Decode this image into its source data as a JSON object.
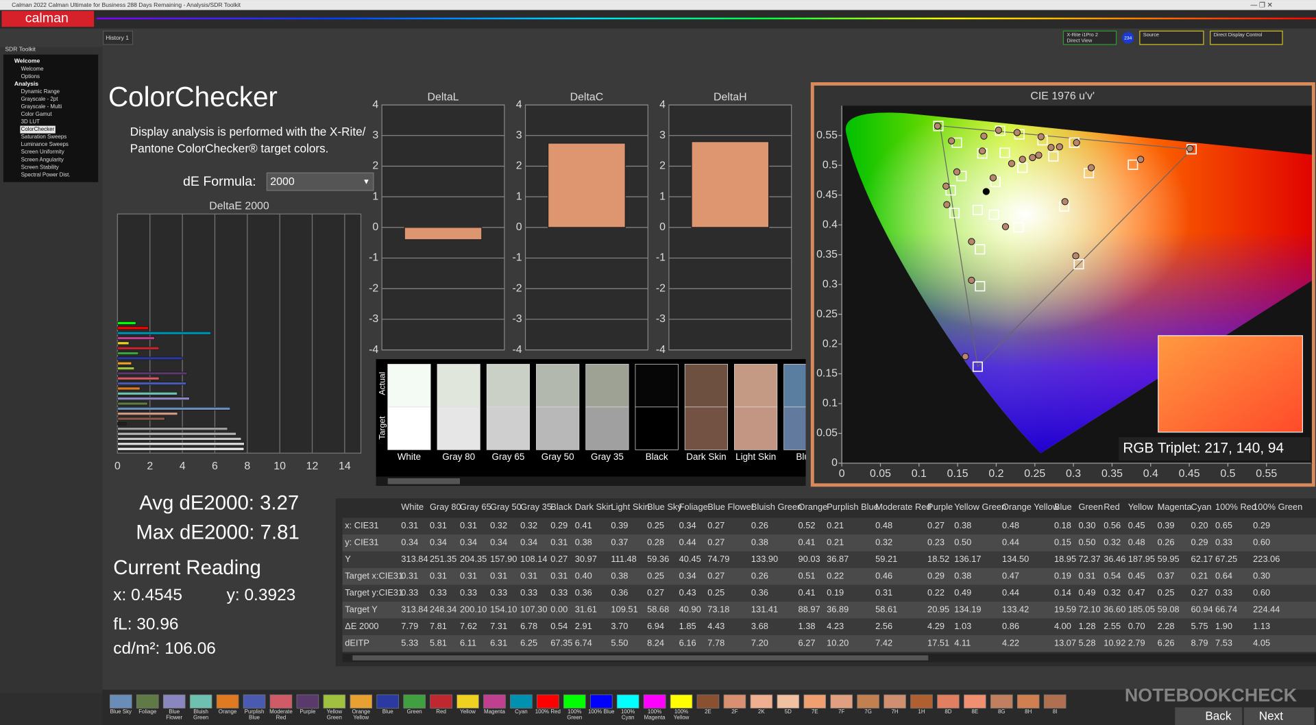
{
  "window": {
    "title": "Calman 2022 Calman Ultimate for Business 288 Days Remaining - Analysis/SDR Toolkit",
    "logo": "calman",
    "tab": "History 1",
    "meter_lines": [
      "X-Rite i1Pro 2",
      "Direct View"
    ],
    "meter_badge": "234",
    "source": "Source",
    "display_control": "Direct Display Control"
  },
  "sidebar": {
    "title": "SDR Toolkit",
    "selected": "ColorChecker",
    "groups": [
      {
        "label": "Welcome",
        "items": [
          "Welcome",
          "Options"
        ]
      },
      {
        "label": "Analysis",
        "items": [
          "Dynamic Range",
          "Grayscale - 2pt",
          "Grayscale - Multi",
          "Color Gamut",
          "3D LUT",
          "ColorChecker",
          "Saturation Sweeps",
          "Luminance Sweeps",
          "Screen Uniformity",
          "Screen Angularity",
          "Screen Stability",
          "Spectral Power Dist."
        ]
      }
    ]
  },
  "page": {
    "heading": "ColorChecker",
    "description_lines": [
      "Display analysis is performed with the X-Rite/",
      "Pantone ColorChecker® target colors."
    ],
    "de_formula_label": "dE Formula:",
    "de_formula_value": "2000"
  },
  "summary": {
    "avg": "Avg dE2000: 3.27",
    "max": "Max dE2000: 7.81",
    "current_title": "Current Reading",
    "x": "x: 0.4545",
    "y": "y: 0.3923",
    "fl": "fL: 30.96",
    "cdm2": "cd/m²: 106.06"
  },
  "chart_data": [
    {
      "type": "hbar",
      "title": "DeltaE 2000",
      "values": [
        7.79,
        7.81,
        7.62,
        7.31,
        6.78,
        0.54,
        2.91,
        3.7,
        6.94,
        1.85,
        4.43,
        3.68,
        1.38,
        4.23,
        2.56,
        4.29,
        1.03,
        0.86,
        4.0,
        1.28,
        2.55,
        0.7,
        2.28,
        5.75,
        1.9,
        1.13
      ],
      "colors": [
        "#f0f0f0",
        "#dcdcdc",
        "#c8c8c8",
        "#b4b4b4",
        "#a0a0a0",
        "#202020",
        "#8a5a44",
        "#d09a82",
        "#6a8cb8",
        "#5f7a45",
        "#8a86c0",
        "#6ec0b0",
        "#e07a20",
        "#4a5ab0",
        "#d05a65",
        "#5a3a6a",
        "#a0c040",
        "#e8a030",
        "#2a3aa0",
        "#40a040",
        "#c02830",
        "#f0d020",
        "#c04090",
        "#0090b0",
        "#ff0000",
        "#00ff00"
      ],
      "xlim": [
        0,
        15
      ],
      "xticks": [
        0,
        2,
        4,
        6,
        8,
        10,
        12,
        14
      ],
      "grid": true
    },
    {
      "type": "bar",
      "title": "DeltaL",
      "values": [
        -0.4
      ],
      "color": "#de9670",
      "ylim": [
        -4,
        4
      ],
      "yticks": [
        4,
        3,
        2,
        1,
        0,
        -1,
        -2,
        -3,
        -4
      ],
      "grid": true
    },
    {
      "type": "bar",
      "title": "DeltaC",
      "values": [
        2.75
      ],
      "color": "#de9670",
      "ylim": [
        -4,
        4
      ],
      "yticks": [
        4,
        3,
        2,
        1,
        0,
        -1,
        -2,
        -3,
        -4
      ],
      "grid": true
    },
    {
      "type": "bar",
      "title": "DeltaH",
      "values": [
        2.8
      ],
      "color": "#de9670",
      "ylim": [
        -4,
        4
      ],
      "yticks": [
        4,
        3,
        2,
        1,
        0,
        -1,
        -2,
        -3,
        -4
      ],
      "grid": true
    },
    {
      "type": "scatter",
      "title": "CIE 1976 u'v'",
      "xlim": [
        0,
        0.6
      ],
      "ylim": [
        0,
        0.6
      ],
      "xticks": [
        0,
        0.05,
        0.1,
        0.15,
        0.2,
        0.25,
        0.3,
        0.35,
        0.4,
        0.45,
        0.5,
        0.55
      ],
      "yticks": [
        0,
        0.05,
        0.1,
        0.15,
        0.2,
        0.25,
        0.3,
        0.35,
        0.4,
        0.45,
        0.5,
        0.55
      ],
      "grid": false,
      "annotation": "RGB Triplet: 217, 140, 94",
      "series": [
        {
          "marker": "square",
          "color": "#ffffff",
          "x": [
            0.125,
            0.149,
            0.205,
            0.23,
            0.26,
            0.301,
            0.453,
            0.182,
            0.211,
            0.234,
            0.274,
            0.32,
            0.377,
            0.155,
            0.199,
            0.141,
            0.176,
            0.197,
            0.146,
            0.229,
            0.288,
            0.179,
            0.307,
            0.179,
            0.176
          ],
          "y": [
            0.566,
            0.538,
            0.558,
            0.552,
            0.542,
            0.538,
            0.527,
            0.52,
            0.521,
            0.496,
            0.515,
            0.487,
            0.501,
            0.482,
            0.472,
            0.458,
            0.425,
            0.417,
            0.42,
            0.396,
            0.431,
            0.359,
            0.334,
            0.297,
            0.162
          ]
        },
        {
          "marker": "circle",
          "color": "#b8866c",
          "x": [
            0.124,
            0.142,
            0.184,
            0.203,
            0.227,
            0.258,
            0.304,
            0.451,
            0.182,
            0.196,
            0.234,
            0.282,
            0.255,
            0.387,
            0.323,
            0.149,
            0.135,
            0.136,
            0.212,
            0.289,
            0.168,
            0.303,
            0.168,
            0.16,
            0.247,
            0.22,
            0.271
          ],
          "y": [
            0.566,
            0.541,
            0.549,
            0.559,
            0.555,
            0.548,
            0.538,
            0.528,
            0.524,
            0.479,
            0.51,
            0.531,
            0.517,
            0.51,
            0.496,
            0.489,
            0.465,
            0.434,
            0.397,
            0.439,
            0.372,
            0.348,
            0.307,
            0.179,
            0.513,
            0.503,
            0.53
          ]
        },
        {
          "marker": "circle",
          "color": "#000000",
          "x": [
            0.187
          ],
          "y": [
            0.456
          ]
        }
      ]
    }
  ],
  "swatches": {
    "actual_label": "Actual",
    "target_label": "Target",
    "items": [
      {
        "label": "White",
        "actual_color": "#f4fbf4",
        "target_color": "#ffffff"
      },
      {
        "label": "Gray 80",
        "actual_color": "#e0e6dc",
        "target_color": "#e6e6e6"
      },
      {
        "label": "Gray 65",
        "actual_color": "#cad0c6",
        "target_color": "#cfcfcf"
      },
      {
        "label": "Gray 50",
        "actual_color": "#b3b8ae",
        "target_color": "#b8b8b8"
      },
      {
        "label": "Gray 35",
        "actual_color": "#9da295",
        "target_color": "#a0a0a0"
      },
      {
        "label": "Black",
        "actual_color": "#060606",
        "target_color": "#000000"
      },
      {
        "label": "Dark Skin",
        "actual_color": "#6e5040",
        "target_color": "#735244"
      },
      {
        "label": "Light Skin",
        "actual_color": "#c49a84",
        "target_color": "#c29683"
      },
      {
        "label": "Blue",
        "actual_color": "#5a7ea0",
        "target_color": "#627a9d"
      }
    ]
  },
  "table": {
    "columns": [
      "White",
      "Gray 80",
      "Gray 65",
      "Gray 50",
      "Gray 35",
      "Black",
      "Dark Skin",
      "Light Skin",
      "Blue Sky",
      "Foliage",
      "Blue Flower",
      "Bluish Green",
      "Orange",
      "Purplish Blue",
      "Moderate Red",
      "Purple",
      "Yellow Green",
      "Orange Yellow",
      "Blue",
      "Green",
      "Red",
      "Yellow",
      "Magenta",
      "Cyan",
      "100% Red",
      "100% Green"
    ],
    "rows": [
      {
        "label": "x: CIE31",
        "cells": [
          "0.31",
          "0.31",
          "0.31",
          "0.32",
          "0.32",
          "0.29",
          "0.41",
          "0.39",
          "0.25",
          "0.34",
          "0.27",
          "0.26",
          "0.52",
          "0.21",
          "0.48",
          "0.27",
          "0.38",
          "0.48",
          "0.18",
          "0.30",
          "0.56",
          "0.45",
          "0.39",
          "0.20",
          "0.65",
          "0.29"
        ]
      },
      {
        "label": "y: CIE31",
        "cells": [
          "0.34",
          "0.34",
          "0.34",
          "0.34",
          "0.34",
          "0.31",
          "0.38",
          "0.37",
          "0.28",
          "0.44",
          "0.27",
          "0.38",
          "0.41",
          "0.21",
          "0.32",
          "0.23",
          "0.50",
          "0.44",
          "0.15",
          "0.50",
          "0.32",
          "0.48",
          "0.26",
          "0.29",
          "0.33",
          "0.60"
        ]
      },
      {
        "label": "Y",
        "cells": [
          "313.84",
          "251.35",
          "204.35",
          "157.90",
          "108.14",
          "0.27",
          "30.97",
          "111.48",
          "59.36",
          "40.45",
          "74.79",
          "133.90",
          "90.03",
          "36.87",
          "59.21",
          "18.52",
          "136.17",
          "134.50",
          "18.95",
          "72.37",
          "36.46",
          "187.95",
          "59.95",
          "62.17",
          "67.25",
          "223.06"
        ]
      },
      {
        "label": "Target x:CIE31",
        "cells": [
          "0.31",
          "0.31",
          "0.31",
          "0.31",
          "0.31",
          "0.31",
          "0.40",
          "0.38",
          "0.25",
          "0.34",
          "0.27",
          "0.26",
          "0.51",
          "0.22",
          "0.46",
          "0.29",
          "0.38",
          "0.47",
          "0.19",
          "0.31",
          "0.54",
          "0.45",
          "0.37",
          "0.21",
          "0.64",
          "0.30"
        ]
      },
      {
        "label": "Target y:CIE31",
        "cells": [
          "0.33",
          "0.33",
          "0.33",
          "0.33",
          "0.33",
          "0.33",
          "0.36",
          "0.36",
          "0.27",
          "0.43",
          "0.25",
          "0.36",
          "0.41",
          "0.19",
          "0.31",
          "0.22",
          "0.49",
          "0.44",
          "0.14",
          "0.49",
          "0.32",
          "0.47",
          "0.25",
          "0.27",
          "0.33",
          "0.60"
        ]
      },
      {
        "label": "Target Y",
        "cells": [
          "313.84",
          "248.34",
          "200.10",
          "154.10",
          "107.30",
          "0.00",
          "31.61",
          "109.51",
          "58.68",
          "40.90",
          "73.18",
          "131.41",
          "88.97",
          "36.89",
          "58.61",
          "20.95",
          "134.19",
          "133.42",
          "19.59",
          "72.10",
          "36.60",
          "185.05",
          "59.08",
          "60.94",
          "66.74",
          "224.44"
        ]
      },
      {
        "label": "ΔE 2000",
        "cells": [
          "7.79",
          "7.81",
          "7.62",
          "7.31",
          "6.78",
          "0.54",
          "2.91",
          "3.70",
          "6.94",
          "1.85",
          "4.43",
          "3.68",
          "1.38",
          "4.23",
          "2.56",
          "4.29",
          "1.03",
          "0.86",
          "4.00",
          "1.28",
          "2.55",
          "0.70",
          "2.28",
          "5.75",
          "1.90",
          "1.13"
        ]
      },
      {
        "label": "dEITP",
        "cells": [
          "5.33",
          "5.81",
          "6.11",
          "6.31",
          "6.25",
          "67.35",
          "6.74",
          "5.50",
          "8.24",
          "6.16",
          "7.78",
          "7.20",
          "6.27",
          "10.20",
          "7.42",
          "17.51",
          "4.11",
          "4.22",
          "13.07",
          "5.28",
          "10.92",
          "2.79",
          "6.26",
          "8.79",
          "7.53",
          "4.05"
        ]
      }
    ]
  },
  "patch_strip": {
    "items": [
      {
        "label": "Blue Sky",
        "color": "#6a8cb8"
      },
      {
        "label": "Foliage",
        "color": "#5f7a45"
      },
      {
        "label": "Blue Flower",
        "color": "#8a86c0"
      },
      {
        "label": "Bluish Green",
        "color": "#6ec0b0"
      },
      {
        "label": "Orange",
        "color": "#e07a20"
      },
      {
        "label": "Purplish Blue",
        "color": "#4a5ab0"
      },
      {
        "label": "Moderate Red",
        "color": "#d05a65"
      },
      {
        "label": "Purple",
        "color": "#5a3a6a"
      },
      {
        "label": "Yellow Green",
        "color": "#a0c040"
      },
      {
        "label": "Orange Yellow",
        "color": "#e8a030"
      },
      {
        "label": "Blue",
        "color": "#2a3aa0"
      },
      {
        "label": "Green",
        "color": "#40a040"
      },
      {
        "label": "Red",
        "color": "#c02830"
      },
      {
        "label": "Yellow",
        "color": "#f0d020"
      },
      {
        "label": "Magenta",
        "color": "#c04090"
      },
      {
        "label": "Cyan",
        "color": "#0090b0"
      },
      {
        "label": "100% Red",
        "color": "#ff0000"
      },
      {
        "label": "100% Green",
        "color": "#00ff00"
      },
      {
        "label": "100% Blue",
        "color": "#0000ff"
      },
      {
        "label": "100% Cyan",
        "color": "#00ffff"
      },
      {
        "label": "100% Magenta",
        "color": "#ff00ff"
      },
      {
        "label": "100% Yellow",
        "color": "#ffff00"
      },
      {
        "label": "2E",
        "color": "#8a5030"
      },
      {
        "label": "2F",
        "color": "#d89070"
      },
      {
        "label": "2K",
        "color": "#f0b090"
      },
      {
        "label": "5D",
        "color": "#f0c0a0"
      },
      {
        "label": "7E",
        "color": "#f0a070"
      },
      {
        "label": "7F",
        "color": "#e0a080"
      },
      {
        "label": "7G",
        "color": "#c08050"
      },
      {
        "label": "7H",
        "color": "#d09070"
      },
      {
        "label": "1H",
        "color": "#b06030"
      },
      {
        "label": "8D",
        "color": "#e08060"
      },
      {
        "label": "8E",
        "color": "#f09070"
      },
      {
        "label": "8G",
        "color": "#c08060"
      },
      {
        "label": "8H",
        "color": "#d08050"
      },
      {
        "label": "8I",
        "color": "#b07050"
      }
    ],
    "back": "Back",
    "next": "Next"
  },
  "watermark": "NOTEBOOKCHECK"
}
